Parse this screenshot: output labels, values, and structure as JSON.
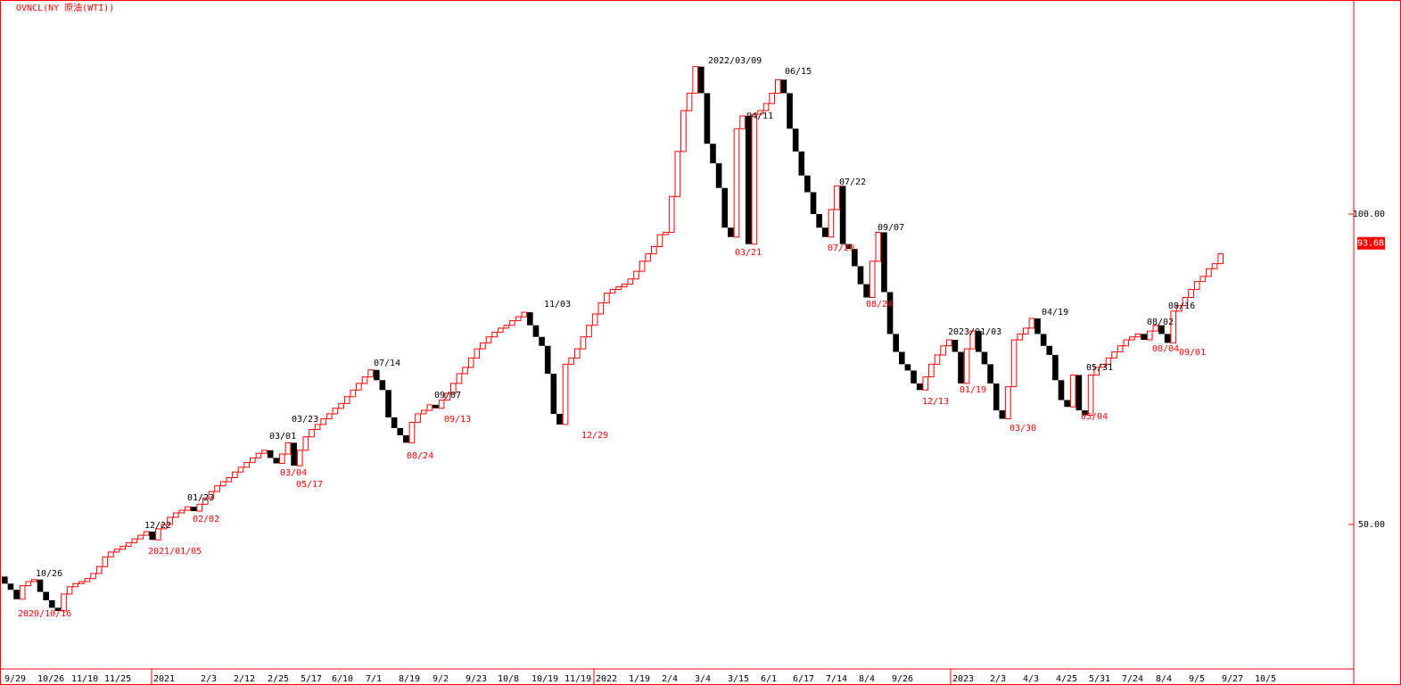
{
  "chart_data": {
    "type": "three_line_break",
    "title": "OVNCL(NY 原油(WTI))",
    "open": 44.5,
    "values": [
      43.8,
      43.2,
      42.3,
      43.6,
      44.0,
      44.2,
      43.0,
      42.2,
      41.5,
      41.2,
      42.8,
      43.5,
      43.8,
      44.0,
      44.3,
      44.8,
      45.5,
      46.5,
      47.0,
      47.3,
      47.6,
      48.0,
      48.4,
      48.8,
      49.2,
      48.3,
      49.5,
      50.0,
      50.8,
      51.3,
      51.6,
      52.0,
      51.5,
      52.3,
      53.0,
      53.8,
      54.5,
      55.0,
      55.5,
      56.2,
      56.8,
      57.4,
      58.0,
      58.6,
      59.0,
      58.0,
      57.3,
      58.5,
      60.0,
      57.0,
      59.0,
      60.8,
      61.8,
      62.5,
      63.3,
      64.0,
      64.8,
      65.5,
      66.5,
      67.5,
      68.5,
      69.5,
      70.6,
      69.0,
      67.5,
      63.5,
      62.0,
      61.0,
      60.0,
      62.8,
      64.0,
      64.5,
      65.3,
      64.8,
      66.0,
      67.0,
      68.5,
      70.0,
      71.0,
      72.5,
      74.0,
      75.0,
      76.0,
      76.8,
      77.5,
      78.0,
      78.8,
      79.5,
      80.3,
      78.0,
      76.0,
      74.5,
      70.0,
      64.0,
      62.5,
      71.5,
      72.5,
      74.0,
      76.0,
      78.0,
      80.0,
      82.0,
      83.8,
      84.5,
      85.0,
      85.5,
      86.5,
      88.0,
      90.0,
      91.5,
      93.0,
      95.5,
      96.0,
      104.0,
      115.0,
      126.0,
      131.0,
      139.0,
      131.0,
      117.0,
      112.0,
      106.0,
      97.0,
      95.0,
      121.0,
      124.5,
      93.5,
      125.0,
      126.0,
      128.0,
      131.0,
      135.0,
      131.0,
      121.0,
      115.0,
      109.0,
      105.0,
      100.0,
      97.0,
      95.0,
      101.0,
      106.5,
      93.5,
      92.5,
      89.0,
      85.5,
      83.0,
      90.0,
      96.0,
      84.0,
      76.5,
      73.5,
      71.5,
      70.5,
      68.5,
      67.5,
      69.5,
      71.5,
      73.0,
      74.5,
      75.5,
      73.5,
      68.5,
      74.0,
      77.0,
      73.5,
      71.5,
      68.5,
      64.5,
      63.3,
      68.0,
      75.5,
      76.5,
      77.5,
      79.2,
      76.5,
      74.5,
      73.0,
      69.0,
      66.0,
      65.0,
      69.8,
      64.5,
      63.8,
      69.8,
      71.0,
      71.5,
      72.5,
      73.5,
      74.5,
      75.5,
      76.0,
      76.5,
      75.5,
      77.0,
      78.0,
      76.5,
      75.0,
      80.5,
      81.5,
      83.0,
      84.5,
      86.0,
      87.0,
      88.5,
      89.5,
      91.5
    ],
    "up_color": "#ff0000",
    "down_color": "#000000",
    "log_scale": true,
    "ylim": [
      36.2,
      161.3
    ],
    "yticks": [
      {
        "value": 100,
        "label": "100.00"
      },
      {
        "value": 50,
        "label": "50.00"
      }
    ],
    "last_price": 93.68,
    "x_labels": [
      "9/29",
      "10/26",
      "11/10",
      "11/25",
      "2021",
      "2/3",
      "2/12",
      "2/25",
      "5/17",
      "6/10",
      "7/1",
      "8/19",
      "9/2",
      "9/23",
      "10/8",
      "10/19",
      "11/19",
      "2022",
      "1/19",
      "2/4",
      "3/4",
      "3/15",
      "6/1",
      "6/17",
      "7/14",
      "8/4",
      "9/26",
      "2023",
      "2/3",
      "4/3",
      "4/25",
      "5/31",
      "7/24",
      "8/4",
      "9/5",
      "9/27",
      "10/5"
    ],
    "annotations": [
      {
        "text": "10/26",
        "color": "#000000"
      },
      {
        "text": "2020/10/16",
        "color": "#ff0000"
      },
      {
        "text": "12/22",
        "color": "#000000"
      },
      {
        "text": "2021/01/05",
        "color": "#ff0000"
      },
      {
        "text": "01/23",
        "color": "#000000"
      },
      {
        "text": "02/02",
        "color": "#ff0000"
      },
      {
        "text": "03/01",
        "color": "#000000"
      },
      {
        "text": "03/04",
        "color": "#ff0000"
      },
      {
        "text": "03/23",
        "color": "#000000"
      },
      {
        "text": "05/17",
        "color": "#ff0000"
      },
      {
        "text": "07/14",
        "color": "#000000"
      },
      {
        "text": "08/24",
        "color": "#ff0000"
      },
      {
        "text": "09/07",
        "color": "#000000"
      },
      {
        "text": "09/13",
        "color": "#ff0000"
      },
      {
        "text": "11/03",
        "color": "#000000"
      },
      {
        "text": "12/29",
        "color": "#ff0000"
      },
      {
        "text": "2022/03/09",
        "color": "#000000"
      },
      {
        "text": "04/11",
        "color": "#000000"
      },
      {
        "text": "03/21",
        "color": "#ff0000"
      },
      {
        "text": "06/15",
        "color": "#000000"
      },
      {
        "text": "07/22",
        "color": "#000000"
      },
      {
        "text": "07/29",
        "color": "#ff0000"
      },
      {
        "text": "09/07",
        "color": "#000000"
      },
      {
        "text": "08/24",
        "color": "#ff0000"
      },
      {
        "text": "2023/01/03",
        "color": "#000000"
      },
      {
        "text": "01/19",
        "color": "#ff0000"
      },
      {
        "text": "12/13",
        "color": "#ff0000"
      },
      {
        "text": "03/30",
        "color": "#ff0000"
      },
      {
        "text": "04/19",
        "color": "#000000"
      },
      {
        "text": "05/31",
        "color": "#000000"
      },
      {
        "text": "05/04",
        "color": "#ff0000"
      },
      {
        "text": "08/02",
        "color": "#000000"
      },
      {
        "text": "08/04",
        "color": "#ff0000"
      },
      {
        "text": "08/16",
        "color": "#000000"
      },
      {
        "text": "09/01",
        "color": "#ff0000"
      }
    ]
  }
}
